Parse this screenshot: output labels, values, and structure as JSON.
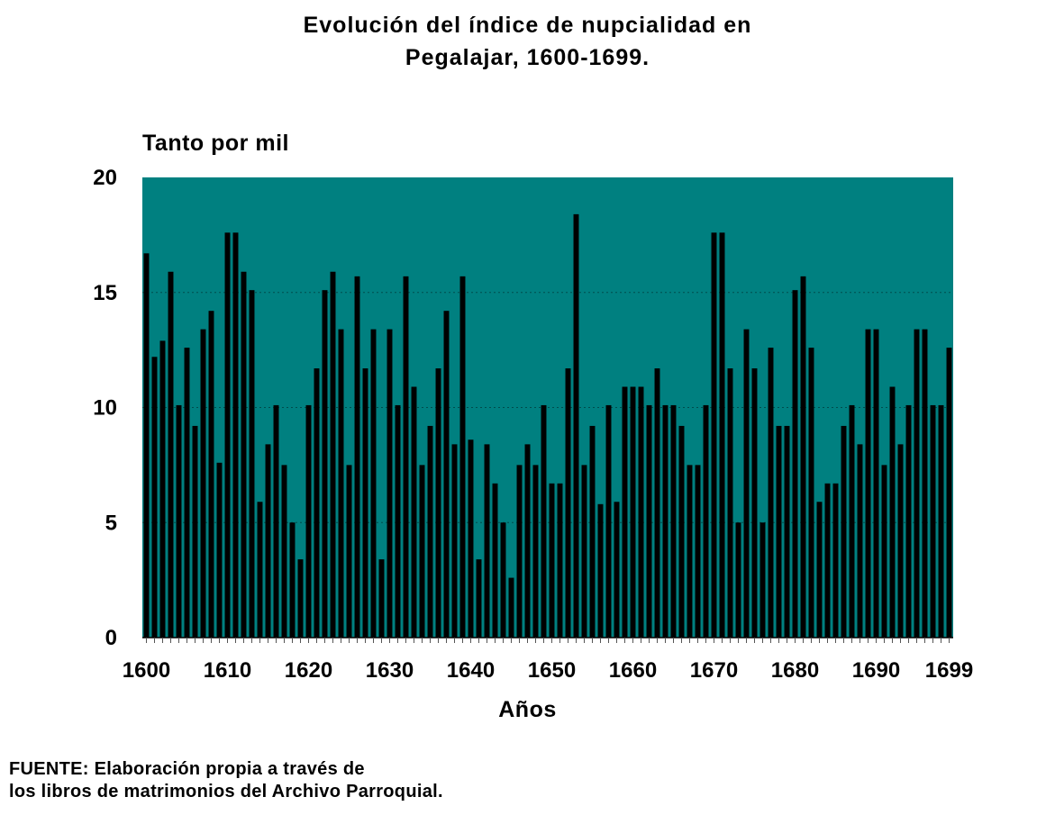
{
  "chart_data": {
    "type": "bar",
    "title": "Evolución del índice de nupcialidad en",
    "subtitle": "Pegalajar, 1600-1699.",
    "ylabel": "Tanto por mil",
    "xlabel": "Años",
    "ylim": [
      0,
      20
    ],
    "yticks": [
      "0",
      "5",
      "10",
      "15",
      "20"
    ],
    "xtick_labels": [
      "1600",
      "1610",
      "1620",
      "1630",
      "1640",
      "1650",
      "1660",
      "1670",
      "1680",
      "1690",
      "1699"
    ],
    "grid": true,
    "plot_background": "#008080",
    "bar_color": "#000000",
    "x": [
      1600,
      1601,
      1602,
      1603,
      1604,
      1605,
      1606,
      1607,
      1608,
      1609,
      1610,
      1611,
      1612,
      1613,
      1614,
      1615,
      1616,
      1617,
      1618,
      1619,
      1620,
      1621,
      1622,
      1623,
      1624,
      1625,
      1626,
      1627,
      1628,
      1629,
      1630,
      1631,
      1632,
      1633,
      1634,
      1635,
      1636,
      1637,
      1638,
      1639,
      1640,
      1641,
      1642,
      1643,
      1644,
      1645,
      1646,
      1647,
      1648,
      1649,
      1650,
      1651,
      1652,
      1653,
      1654,
      1655,
      1656,
      1657,
      1658,
      1659,
      1660,
      1661,
      1662,
      1663,
      1664,
      1665,
      1666,
      1667,
      1668,
      1669,
      1670,
      1671,
      1672,
      1673,
      1674,
      1675,
      1676,
      1677,
      1678,
      1679,
      1680,
      1681,
      1682,
      1683,
      1684,
      1685,
      1686,
      1687,
      1688,
      1689,
      1690,
      1691,
      1692,
      1693,
      1694,
      1695,
      1696,
      1697,
      1698,
      1699
    ],
    "values": [
      16.7,
      12.2,
      12.9,
      15.9,
      10.1,
      12.6,
      9.2,
      13.4,
      14.2,
      7.6,
      17.6,
      17.6,
      15.9,
      15.1,
      5.9,
      8.4,
      10.1,
      7.5,
      5.0,
      3.4,
      10.1,
      11.7,
      15.1,
      15.9,
      13.4,
      7.5,
      15.7,
      11.7,
      13.4,
      3.4,
      13.4,
      10.1,
      15.7,
      10.9,
      7.5,
      9.2,
      11.7,
      14.2,
      8.4,
      15.7,
      8.6,
      3.4,
      8.4,
      6.7,
      5.0,
      2.6,
      7.5,
      8.4,
      7.5,
      10.1,
      6.7,
      6.7,
      11.7,
      18.4,
      7.5,
      9.2,
      5.8,
      10.1,
      5.9,
      10.9,
      10.9,
      10.9,
      10.1,
      11.7,
      10.1,
      10.1,
      9.2,
      7.5,
      7.5,
      10.1,
      17.6,
      17.6,
      11.7,
      5.0,
      13.4,
      11.7,
      5.0,
      12.6,
      9.2,
      9.2,
      15.1,
      15.7,
      12.6,
      5.9,
      6.7,
      6.7,
      9.2,
      10.1,
      8.4,
      13.4,
      13.4,
      7.5,
      10.9,
      8.4,
      10.1,
      13.4,
      13.4,
      10.1,
      10.1,
      12.6
    ]
  },
  "source": {
    "line1": "FUENTE: Elaboración propia a través de",
    "line2": "los libros de matrimonios del Archivo Parroquial."
  }
}
